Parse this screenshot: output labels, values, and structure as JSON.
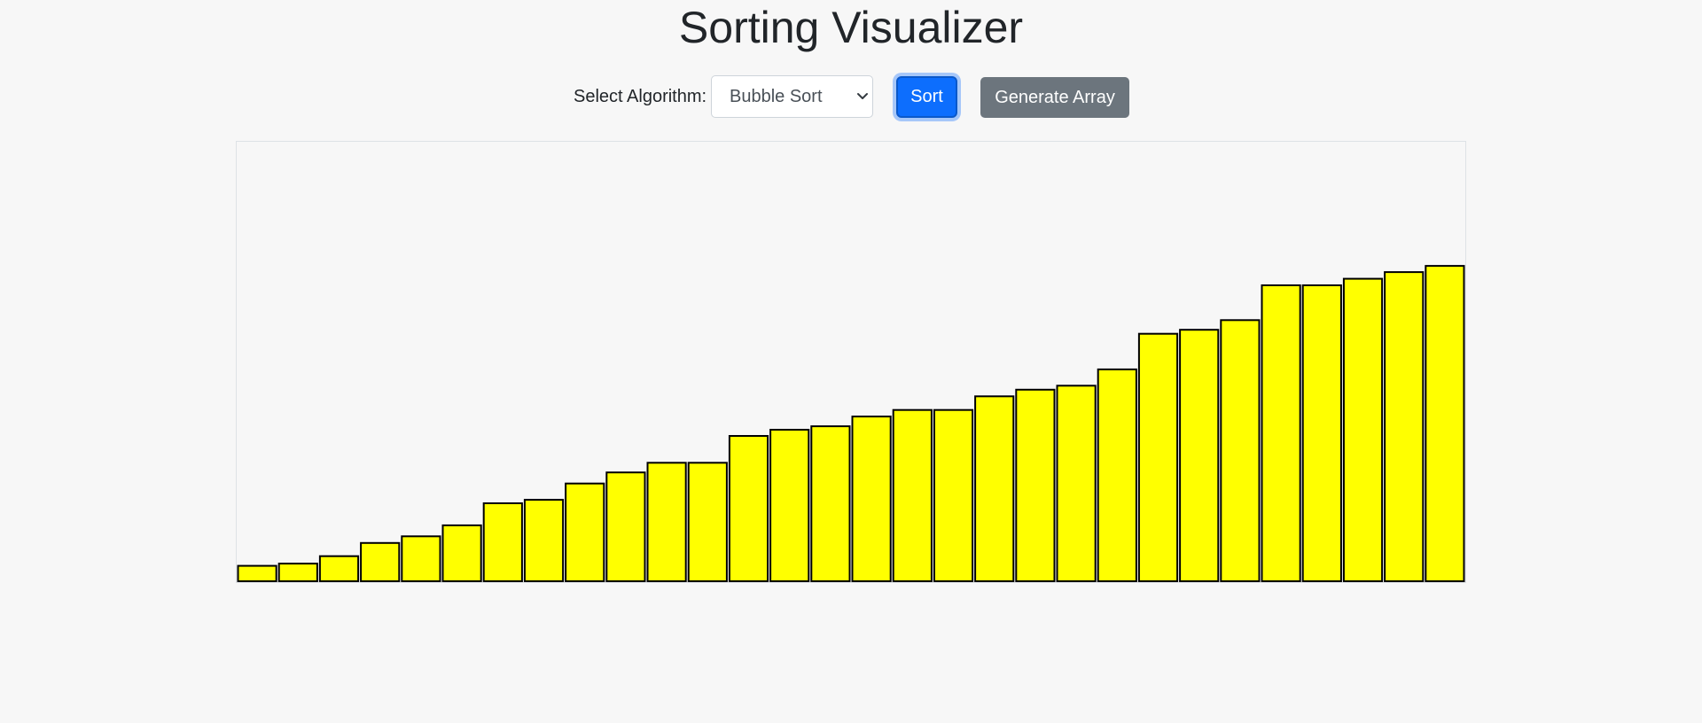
{
  "page": {
    "title": "Sorting Visualizer"
  },
  "controls": {
    "select_label": "Select Algorithm:",
    "algorithm_selected": "Bubble Sort",
    "sort_label": "Sort",
    "generate_label": "Generate Array"
  },
  "colors": {
    "bar_fill": "#ffff00",
    "bar_stroke": "#000000",
    "sort_button": "#0d6efd",
    "generate_button": "#6c757d"
  },
  "chart_data": {
    "type": "bar",
    "title": "",
    "xlabel": "",
    "ylabel": "",
    "ylim": [
      0,
      100
    ],
    "values": [
      3.5,
      4,
      5.7,
      8.7,
      10.2,
      12.7,
      17.7,
      18.5,
      22.2,
      24.7,
      26.9,
      26.9,
      33,
      34.4,
      35.2,
      37.4,
      38.9,
      38.9,
      42,
      43.5,
      44.4,
      48.1,
      56.2,
      57.1,
      59.3,
      67.2,
      67.2,
      68.7,
      70.2,
      71.6
    ]
  }
}
